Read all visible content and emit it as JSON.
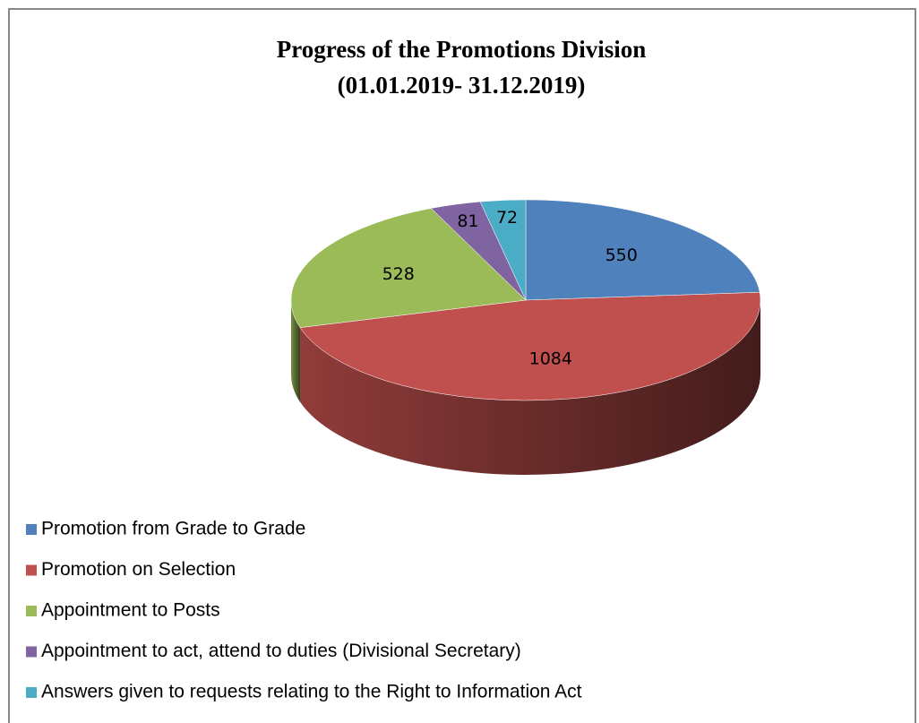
{
  "chart_data": {
    "type": "pie3d",
    "title": "Progress of the Promotions Division",
    "subtitle": "(01.01.2019- 31.12.2019)",
    "categories": [
      "Promotion from Grade to Grade",
      "Promotion on Selection",
      "Appointment to Posts",
      "Appointment to act, attend to duties (Divisional Secretary)",
      "Answers given to requests relating to the Right to Information Act"
    ],
    "values": [
      550,
      1084,
      528,
      81,
      72
    ],
    "colors": [
      "#4f81bd",
      "#c0504d",
      "#9bbb59",
      "#8064a2",
      "#4bacc6"
    ],
    "legend": "bottom"
  }
}
